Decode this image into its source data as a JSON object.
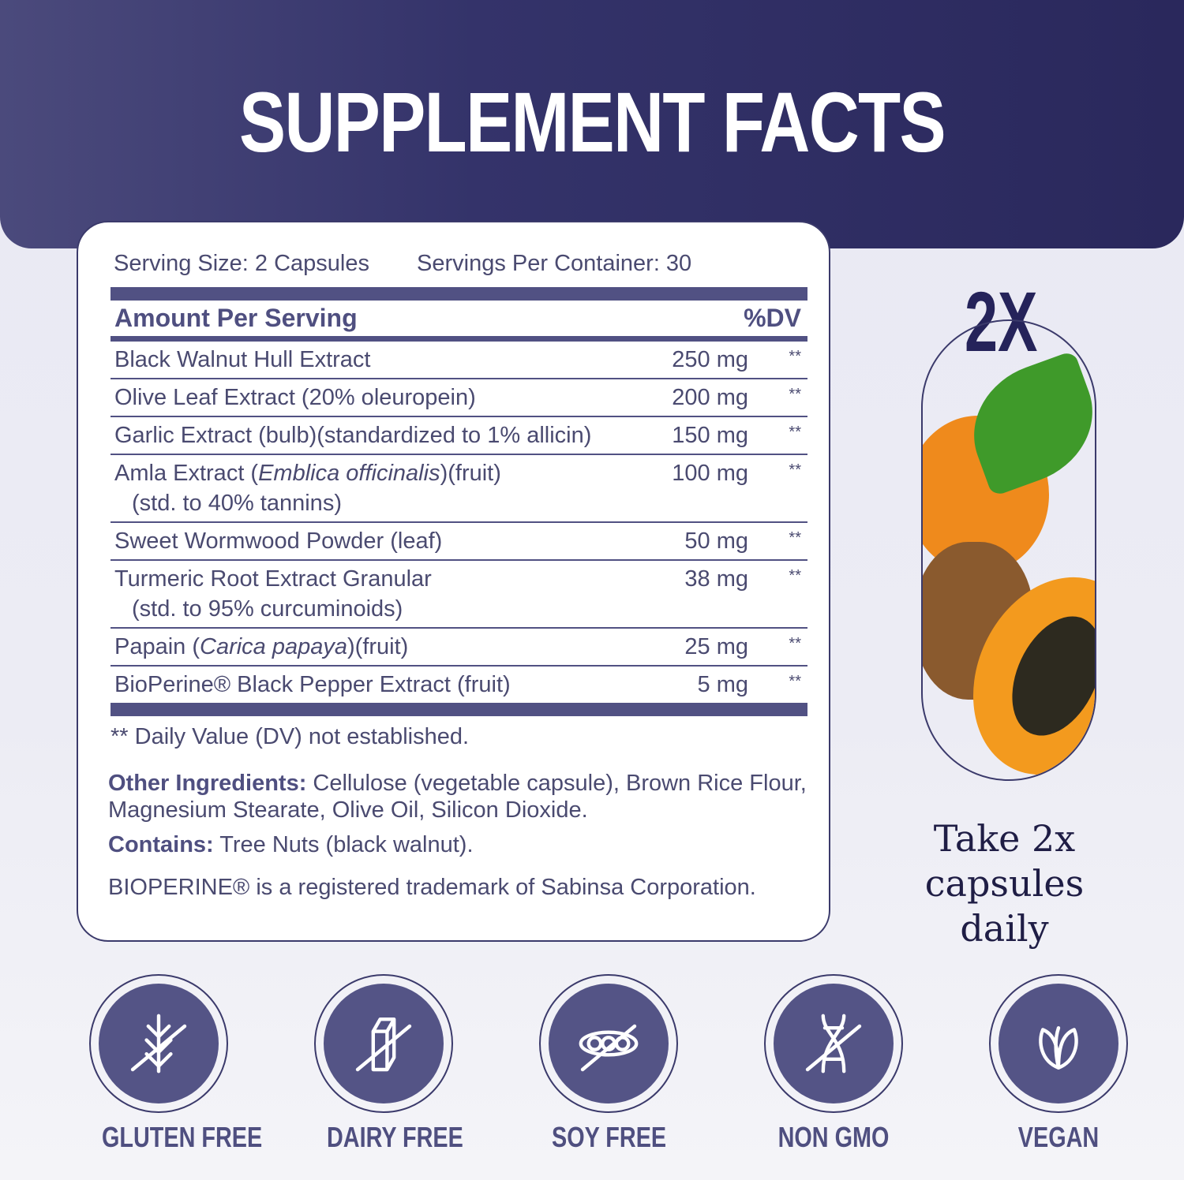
{
  "title": "SUPPLEMENT FACTS",
  "facts": {
    "serving_size": "Serving Size: 2 Capsules",
    "servings_per_container": "Servings Per Container: 30",
    "amount_header": "Amount Per Serving",
    "dv_header": "%DV",
    "rows": [
      {
        "name": "Black Walnut Hull Extract",
        "sub": "",
        "amount": "250 mg",
        "dv": "**"
      },
      {
        "name": "Olive Leaf Extract (20% oleuropein)",
        "sub": "",
        "amount": "200 mg",
        "dv": "**"
      },
      {
        "name": "Garlic Extract (bulb)(standardized to 1% allicin)",
        "sub": "",
        "amount": "150 mg",
        "dv": "**"
      },
      {
        "name_pre": "Amla Extract (",
        "name_it": "Emblica officinalis",
        "name_post": ")(fruit)",
        "sub": "(std. to 40% tannins)",
        "amount": "100 mg",
        "dv": "**"
      },
      {
        "name": "Sweet Wormwood Powder (leaf)",
        "sub": "",
        "amount": "50 mg",
        "dv": "**"
      },
      {
        "name": "Turmeric Root Extract Granular",
        "sub": "(std. to 95% curcuminoids)",
        "amount": "38 mg",
        "dv": "**"
      },
      {
        "name_pre": "Papain (",
        "name_it": "Carica papaya",
        "name_post": ")(fruit)",
        "sub": "",
        "amount": "25 mg",
        "dv": "**"
      },
      {
        "name": "BioPerine® Black Pepper Extract (fruit)",
        "sub": "",
        "amount": "5 mg",
        "dv": "**"
      }
    ],
    "footnote": "** Daily Value (DV) not established.",
    "other_label": "Other Ingredients:",
    "other_text": " Cellulose (vegetable capsule), Brown Rice Flour, Magnesium Stearate, Olive Oil, Silicon Dioxide.",
    "contains_label": "Contains:",
    "contains_text": " Tree Nuts (black walnut).",
    "trademark": "BIOPERINE® is a registered trademark of Sabinsa Corporation."
  },
  "side": {
    "dose_badge": "2X",
    "instruction": "Take 2x capsules daily"
  },
  "badges": [
    {
      "label": "GLUTEN FREE",
      "icon": "wheat-crossed-icon"
    },
    {
      "label": "DAIRY FREE",
      "icon": "milk-carton-crossed-icon"
    },
    {
      "label": "SOY FREE",
      "icon": "soybean-crossed-icon"
    },
    {
      "label": "NON GMO",
      "icon": "dna-crossed-icon"
    },
    {
      "label": "VEGAN",
      "icon": "leaf-icon"
    }
  ],
  "colors": {
    "primary": "#515183",
    "header_dark": "#2a285c",
    "text": "#4a4a70"
  }
}
